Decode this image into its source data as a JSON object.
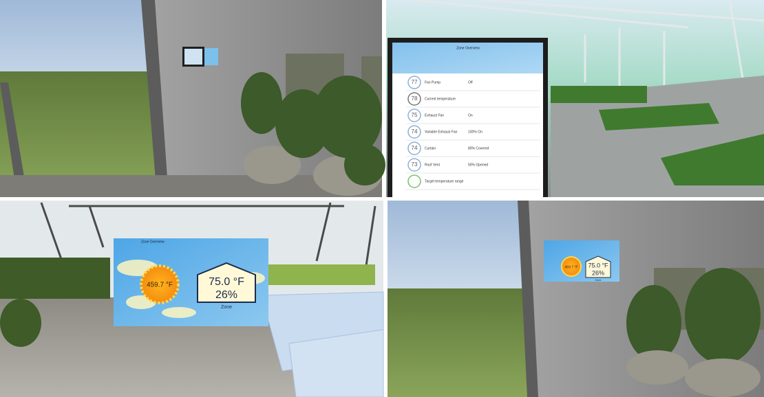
{
  "views": [
    {
      "tablet": {
        "header": "Zone Overview",
        "rows": [
          {
            "number": "77",
            "label": "Fan Pump",
            "status": "Off"
          },
          {
            "number": "78",
            "label": "Current temperature"
          },
          {
            "number": "75",
            "label": "Exhaust Fan",
            "status": "On"
          },
          {
            "number": "74",
            "label": "Variable Exhaust Fan",
            "status": "100% On"
          },
          {
            "number": "74",
            "label": "Curtain",
            "status": "80% Covered"
          },
          {
            "number": "73",
            "label": "Roof Vent",
            "status": "50% Opened"
          },
          {
            "label": "Target temperature range"
          }
        ]
      }
    },
    {
      "display": {
        "title": "Zone Overview",
        "sun_temperature": "459.7 °F",
        "zone_temperature": "75.0 °F",
        "humidity": "26%",
        "zone": "Zone"
      }
    },
    {
      "display": {
        "sun_temperature": "459.7 °F",
        "zone_temperature": "75.0 °F",
        "humidity": "26%",
        "zone": "Zone"
      }
    }
  ]
}
